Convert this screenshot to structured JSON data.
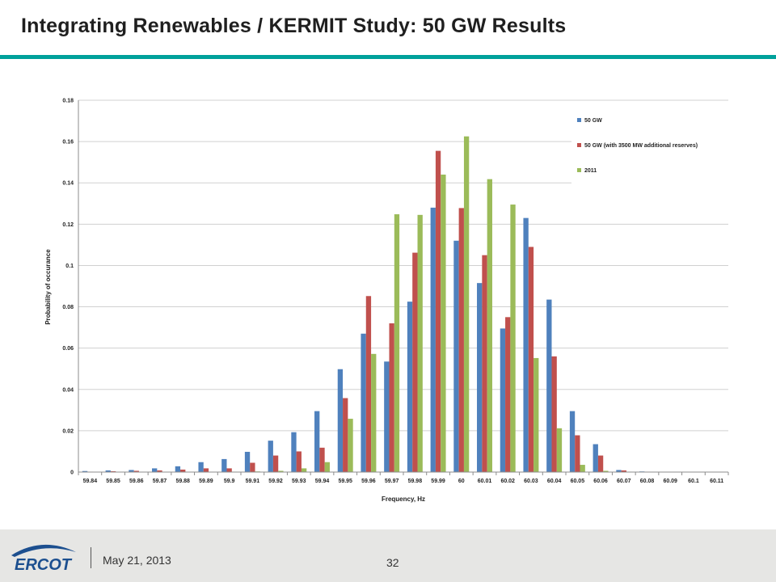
{
  "slide": {
    "title": "Integrating Renewables / KERMIT Study:  50 GW Results",
    "accent_color": "#00a19b"
  },
  "footer": {
    "logo_text": "ERCOT",
    "logo_icon": "ercot-swoosh-logo",
    "date": "May 21, 2013",
    "page_number": "32"
  },
  "chart_data": {
    "type": "bar",
    "xlabel": "Frequency, Hz",
    "ylabel": "Probability of occurance",
    "ylim": [
      0,
      0.18
    ],
    "yticks": [
      "0",
      "0.02",
      "0.04",
      "0.06",
      "0.08",
      "0.1",
      "0.12",
      "0.14",
      "0.16",
      "0.18"
    ],
    "grid": true,
    "legend": "top-right",
    "categories": [
      "59.84",
      "59.85",
      "59.86",
      "59.87",
      "59.88",
      "59.89",
      "59.9",
      "59.91",
      "59.92",
      "59.93",
      "59.94",
      "59.95",
      "59.96",
      "59.97",
      "59.98",
      "59.99",
      "60",
      "60.01",
      "60.02",
      "60.03",
      "60.04",
      "60.05",
      "60.06",
      "60.07",
      "60.08",
      "60.09",
      "60.1",
      "60.11"
    ],
    "series": [
      {
        "name": "50 GW",
        "color": "#4f81bd",
        "values": [
          0.0005,
          0.0008,
          0.001,
          0.0018,
          0.0028,
          0.0048,
          0.0063,
          0.0098,
          0.0152,
          0.0193,
          0.0295,
          0.0498,
          0.067,
          0.0535,
          0.0825,
          0.128,
          0.112,
          0.0915,
          0.0695,
          0.123,
          0.0835,
          0.0295,
          0.0135,
          0.001,
          0.0003,
          0.0001,
          0.0001,
          0.0001
        ]
      },
      {
        "name": "50 GW (with 3500 MW additional reserves)",
        "color": "#c0504d",
        "values": [
          0.0002,
          0.0004,
          0.0006,
          0.0008,
          0.0012,
          0.0018,
          0.0018,
          0.0045,
          0.008,
          0.01,
          0.0118,
          0.0358,
          0.0852,
          0.072,
          0.1062,
          0.1555,
          0.1278,
          0.105,
          0.075,
          0.109,
          0.056,
          0.0178,
          0.008,
          0.0008,
          0.0002,
          0.0001,
          0.0001,
          0.0001
        ]
      },
      {
        "name": "2011",
        "color": "#9bbb59",
        "values": [
          0.0001,
          0.0001,
          0.0001,
          0.0001,
          0.0001,
          0.0001,
          0.0002,
          0.0003,
          0.0006,
          0.0018,
          0.0048,
          0.0258,
          0.0572,
          0.1248,
          0.1245,
          0.144,
          0.1625,
          0.1418,
          0.1295,
          0.0552,
          0.0212,
          0.0035,
          0.0006,
          0.0002,
          0.0001,
          0.0001,
          0.0001,
          0.0001
        ]
      }
    ]
  }
}
